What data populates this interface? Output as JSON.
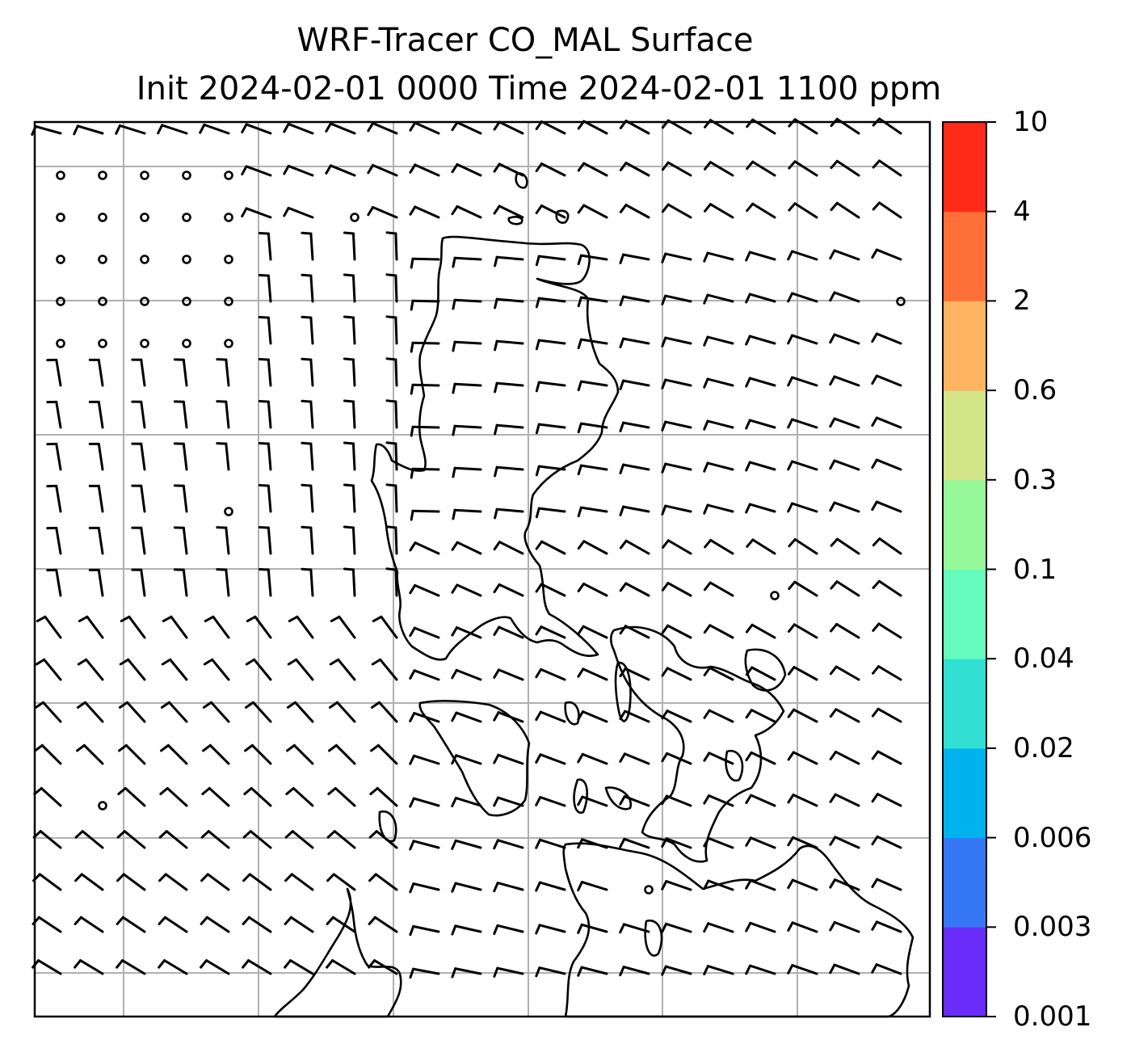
{
  "title": {
    "line1": "WRF-Tracer CO_MAL Surface",
    "line2": "Init 2024-02-01 0000 Time 2024-02-01 1100 ppm"
  },
  "colorbar": {
    "ticks": [
      "0.001",
      "0.003",
      "0.006",
      "0.02",
      "0.04",
      "0.1",
      "0.3",
      "0.6",
      "2",
      "4",
      "10"
    ],
    "colors": [
      "#6a2cf9",
      "#3677f6",
      "#00b2ee",
      "#31e0d2",
      "#64fbbc",
      "#95f99a",
      "#d2e388",
      "#feb461",
      "#ff7039",
      "#ff2a17"
    ]
  },
  "map": {
    "grid": true,
    "gridline_color": "#b0b0b0",
    "coastline_color": "#000000",
    "overlay": "wind barbs"
  }
}
